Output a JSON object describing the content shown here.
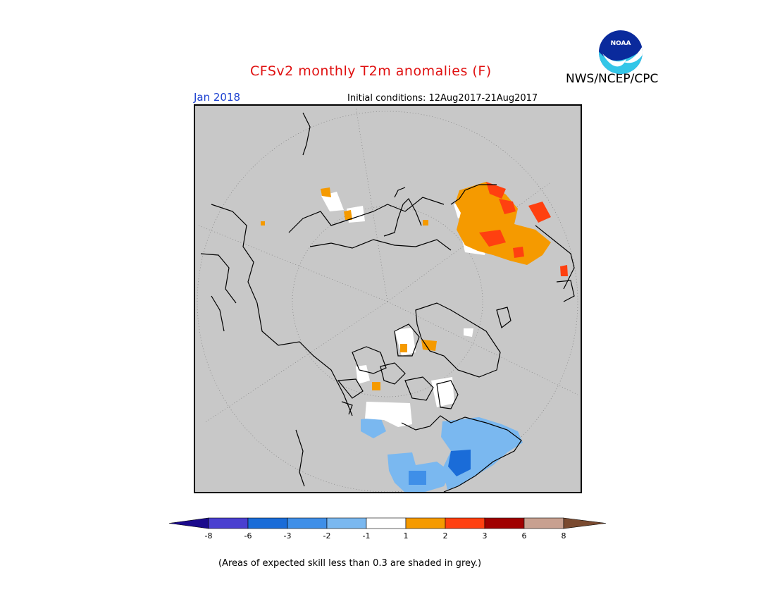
{
  "title": "CFSv2 monthly T2m anomalies (F)",
  "agency": "NWS/NCEP/CPC",
  "logo_text": "NOAA",
  "valid_month": "Jan 2018",
  "initial_conditions": "Initial conditions: 12Aug2017-21Aug2017",
  "footnote": "(Areas of expected skill less than 0.3 are shaded in grey.)",
  "colorbar": {
    "tick_labels": [
      "-8",
      "-6",
      "-3",
      "-2",
      "-1",
      "1",
      "2",
      "3",
      "6",
      "8"
    ],
    "colors": [
      "#1a0a8c",
      "#4a3fd0",
      "#1a6cd8",
      "#3f8fe8",
      "#7ab8f0",
      "#ffffff",
      "#f59a00",
      "#ff4010",
      "#a00000",
      "#c8a090",
      "#7a4a30"
    ]
  },
  "map_colors": {
    "background": "#c8c8c8",
    "warm_1": "#f59a00",
    "warm_2": "#ff4010",
    "cool_1": "#7ab8f0",
    "cool_2": "#3f8fe8",
    "cool_3": "#1a6cd8",
    "neutral": "#ffffff"
  }
}
